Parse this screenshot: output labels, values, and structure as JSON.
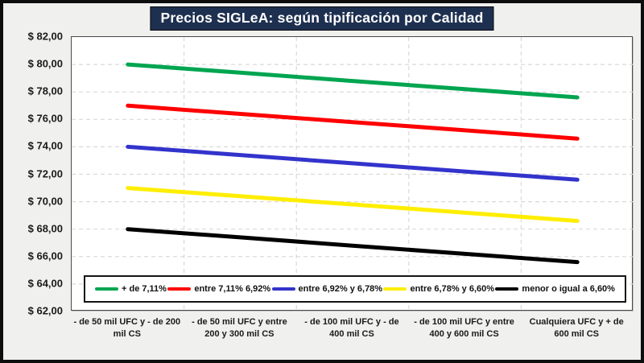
{
  "title": "Precios SIGLeA: según tipificación por Calidad",
  "colors": {
    "title_background": "#1e3050",
    "title_text": "#ffffff",
    "page_background": "#f0f0ef",
    "plot_background": "#ffffff",
    "gridline": "#d9d9d9",
    "axis_text": "#1a1a1a",
    "outer_border": "#0d0d0d"
  },
  "chart_data": {
    "type": "line",
    "title": "Precios SIGLeA: según tipificación por Calidad",
    "categories": [
      "- de 50 mil UFC y - de 200 mil CS",
      "- de 50 mil UFC y entre 200 y 300 mil CS",
      "- de 100 mil UFC y - de 400 mil CS",
      "- de 100 mil UFC y entre 400 y 600 mil CS",
      "Cualquiera UFC y + de 600 mil CS"
    ],
    "series": [
      {
        "name": "+ de 7,11%",
        "color": "#00a550",
        "values": [
          80.0,
          79.4,
          78.8,
          78.2,
          77.6
        ]
      },
      {
        "name": "entre 7,11% 6,92%",
        "color": "#fe0000",
        "values": [
          77.0,
          76.4,
          75.8,
          75.2,
          74.6
        ]
      },
      {
        "name": "entre 6,92% y 6,78%",
        "color": "#3333cc",
        "values": [
          74.0,
          73.4,
          72.8,
          72.2,
          71.6
        ]
      },
      {
        "name": "entre 6,78% y 6,60%",
        "color": "#ffee00",
        "values": [
          71.0,
          70.4,
          69.8,
          69.2,
          68.6
        ]
      },
      {
        "name": "menor o igual a 6,60%",
        "color": "#000000",
        "values": [
          68.0,
          67.4,
          66.8,
          66.2,
          65.6
        ]
      }
    ],
    "ylim": [
      62,
      82
    ],
    "y_ticks": [
      {
        "value": 82,
        "label": "$ 82,00"
      },
      {
        "value": 80,
        "label": "$ 80,00"
      },
      {
        "value": 78,
        "label": "$ 78,00"
      },
      {
        "value": 76,
        "label": "$ 76,00"
      },
      {
        "value": 74,
        "label": "$ 74,00"
      },
      {
        "value": 72,
        "label": "$ 72,00"
      },
      {
        "value": 70,
        "label": "$ 70,00"
      },
      {
        "value": 68,
        "label": "$ 68,00"
      },
      {
        "value": 66,
        "label": "$ 66,00"
      },
      {
        "value": 64,
        "label": "$ 64,00"
      },
      {
        "value": 62,
        "label": "$ 62,00"
      }
    ],
    "grid": "dashed horizontal gridlines at each y tick, dashed vertical gridlines at category boundaries",
    "legend_position": "bottom-inside",
    "xlabel": "",
    "ylabel": ""
  }
}
